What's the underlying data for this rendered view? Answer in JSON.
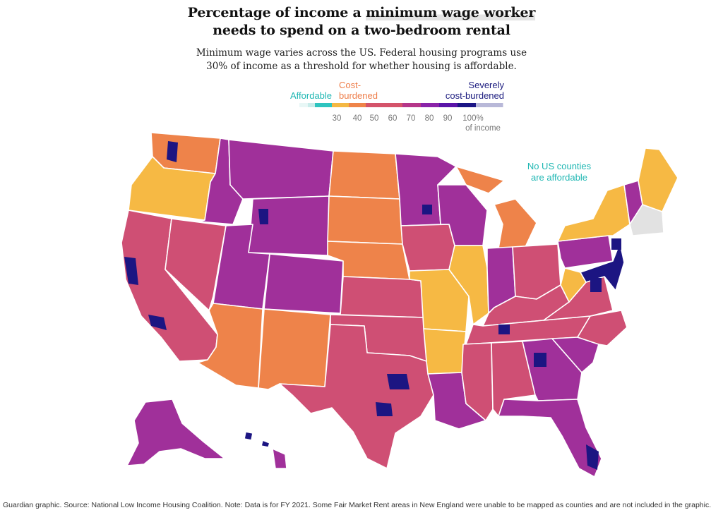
{
  "title_part1": "Percentage of income a ",
  "title_highlight": "minimum wage worker",
  "title_line2": "needs to spend on a two-bedroom rental",
  "subtitle_line1": "Minimum wage varies across the US. Federal housing programs use",
  "subtitle_line2": "30% of income as a threshold for whether housing is affordable.",
  "legend": {
    "affordable": "Affordable",
    "cost_burdened_line1": "Cost-",
    "cost_burdened_line2": "burdened",
    "severe_line1": "Severely",
    "severe_line2": "cost-burdened",
    "ticks": [
      "30",
      "40",
      "50",
      "60",
      "70",
      "80",
      "90",
      "100%"
    ],
    "unit": "of income",
    "colors": [
      "#c8ecea",
      "#2ec4bf",
      "#f4b843",
      "#ef8449",
      "#d4536a",
      "#b53689",
      "#8a23a8",
      "#5a14a8",
      "#1b1585",
      "#b8b8d8"
    ]
  },
  "note_line1": "No US counties",
  "note_line2": "are affordable",
  "footer": "Guardian graphic. Source: National Low Income Housing Coalition. Note: Data is for FY 2021. Some Fair Market Rent areas in New England were unable to be mapped as counties and are not included in the graphic.",
  "map_colors": {
    "yellow": "#f6b944",
    "orange": "#ee834a",
    "magenta": "#cf4f74",
    "purple": "#a0309a",
    "violet": "#6f18a8",
    "navy": "#1c1582",
    "gray": "#e2e2e2",
    "border": "#ffffff"
  }
}
